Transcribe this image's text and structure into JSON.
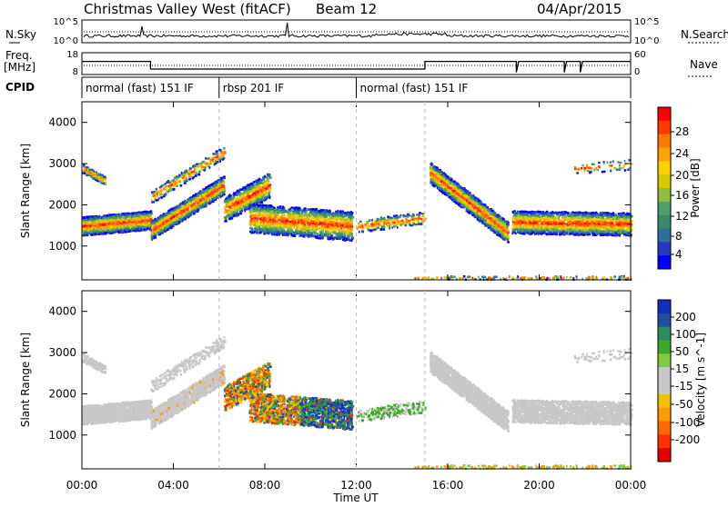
{
  "header": {
    "station": "Christmas Valley West (fitACF)",
    "beam": "Beam 12",
    "date": "04/Apr/2015"
  },
  "side_labels": {
    "nsky": "N.Sky",
    "freq": "Freq.",
    "freq_unit": "[MHz]",
    "cpid": "CPID",
    "nsearch": "N.Search",
    "nave": "Nave"
  },
  "noise_panel": {
    "left_ticks": [
      "10^5",
      "10^0"
    ],
    "right_ticks": [
      "10^5",
      "10^0"
    ]
  },
  "freq_panel": {
    "left_ticks": [
      "18",
      "8"
    ],
    "right_ticks": [
      "60",
      "0"
    ]
  },
  "cpid_segments": [
    {
      "label": "normal (fast) 151 IF",
      "start_hr": 0,
      "end_hr": 6
    },
    {
      "label": "rbsp 201 IF",
      "start_hr": 6,
      "end_hr": 12
    },
    {
      "label": "normal (fast) 151 IF",
      "start_hr": 12,
      "end_hr": 24
    }
  ],
  "x_axis": {
    "label": "Time UT",
    "ticks": [
      "00:00",
      "04:00",
      "08:00",
      "12:00",
      "16:00",
      "20:00",
      "00:00"
    ]
  },
  "power_panel": {
    "ylabel": "Slant Range [km]",
    "yticks": [
      "4000",
      "3000",
      "2000",
      "1000"
    ],
    "colorbar_label": "Power [dB]",
    "colorbar_ticks": [
      "28",
      "24",
      "20",
      "16",
      "12",
      "8",
      "4"
    ],
    "colors": [
      "#ff0000",
      "#ff3a00",
      "#ff7a00",
      "#ffa200",
      "#ffd000",
      "#d4c800",
      "#8fbf40",
      "#4f9f6a",
      "#3a8a6a",
      "#2f6fa0",
      "#2438c8",
      "#0000ff"
    ]
  },
  "velocity_panel": {
    "ylabel": "Slant Range [km]",
    "yticks": [
      "4000",
      "3000",
      "2000",
      "1000"
    ],
    "colorbar_label": "Velocity [m s^-1]",
    "colorbar_ticks": [
      "200",
      "100",
      "50",
      "15",
      "-15",
      "-50",
      "-100",
      "-200"
    ],
    "colors": [
      "#1030c0",
      "#2050a0",
      "#2f8a60",
      "#3fa82a",
      "#80cc40",
      "#c8c8c8",
      "#c8c8c8",
      "#f2c200",
      "#ff9a00",
      "#ff6a00",
      "#ff3000",
      "#e00000"
    ]
  },
  "chart_data": {
    "type": "heatmap",
    "x_range_hours": [
      0,
      24
    ],
    "y_range_km": [
      180,
      4500
    ],
    "power_range_db": [
      0,
      30
    ],
    "velocity_range": [
      -250,
      250
    ],
    "grid": false
  }
}
